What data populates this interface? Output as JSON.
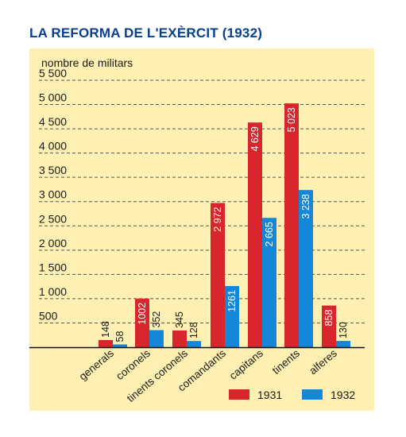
{
  "chart_data": {
    "type": "bar",
    "title": "LA REFORMA DE L'EXÈRCIT (1932)",
    "ylabel": "nombre de militars",
    "xlabel": "",
    "ylim": [
      0,
      5500
    ],
    "yticks": [
      {
        "value": 500,
        "label": "500"
      },
      {
        "value": 1000,
        "label": "1 000"
      },
      {
        "value": 1500,
        "label": "1 500"
      },
      {
        "value": 2000,
        "label": "2 000"
      },
      {
        "value": 2500,
        "label": "2 500"
      },
      {
        "value": 3000,
        "label": "3 000"
      },
      {
        "value": 3500,
        "label": "3 500"
      },
      {
        "value": 4000,
        "label": "4 000"
      },
      {
        "value": 4500,
        "label": "4 500"
      },
      {
        "value": 5000,
        "label": "5 000"
      },
      {
        "value": 5500,
        "label": "5 500"
      }
    ],
    "categories": [
      "generals",
      "coronels",
      "tinents coronels",
      "comandants",
      "capitans",
      "tinents",
      "alferes"
    ],
    "series": [
      {
        "name": "1931",
        "color": "#d9262c",
        "values": [
          148,
          1002,
          345,
          2972,
          4629,
          5023,
          858
        ],
        "labels": [
          "148",
          "1002",
          "345",
          "2 972",
          "4 629",
          "5 023",
          "858"
        ]
      },
      {
        "name": "1932",
        "color": "#1487d8",
        "values": [
          58,
          352,
          128,
          1261,
          2665,
          3238,
          130
        ],
        "labels": [
          "58",
          "352",
          "128",
          "1261",
          "2 665",
          "3 238",
          "130"
        ]
      }
    ],
    "grid": true,
    "legend_position": "bottom-right",
    "background_color": "#fdf0b2"
  }
}
